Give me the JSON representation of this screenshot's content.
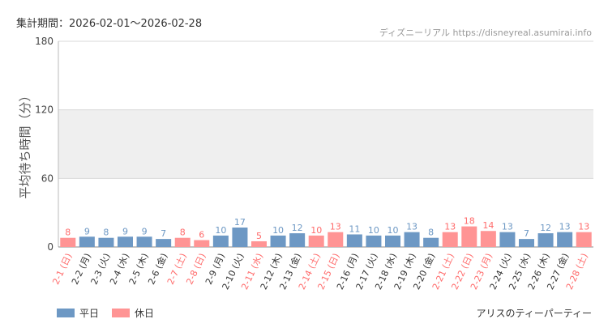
{
  "header": {
    "period": "集計期間：2026-02-01～2026-02-28",
    "credit": "ディズニーリアル https://disneyreal.asumirai.info"
  },
  "footer": {
    "attraction": "アリスのティーパーティー"
  },
  "colors": {
    "weekday": "#6d98c4",
    "holiday": "#ff9494",
    "holiday_text": "#ff6b6b",
    "band": "#efefef"
  },
  "chart_data": {
    "type": "bar",
    "ylabel": "平均待ち時間（分）",
    "ylim": [
      0,
      180
    ],
    "yticks": [
      0,
      60,
      120,
      180
    ],
    "shaded_band": [
      60,
      120
    ],
    "legend": [
      {
        "name": "平日",
        "key": "weekday"
      },
      {
        "name": "休日",
        "key": "holiday"
      }
    ],
    "legend_position": "bottom-left",
    "categories": [
      "2-1 (日)",
      "2-2 (月)",
      "2-3 (火)",
      "2-4 (水)",
      "2-5 (木)",
      "2-6 (金)",
      "2-7 (土)",
      "2-8 (日)",
      "2-9 (月)",
      "2-10 (火)",
      "2-11 (水)",
      "2-12 (木)",
      "2-13 (金)",
      "2-14 (土)",
      "2-15 (日)",
      "2-16 (月)",
      "2-17 (火)",
      "2-18 (水)",
      "2-19 (木)",
      "2-20 (金)",
      "2-21 (土)",
      "2-22 (日)",
      "2-23 (月)",
      "2-24 (火)",
      "2-25 (水)",
      "2-26 (木)",
      "2-27 (金)",
      "2-28 (土)"
    ],
    "values": [
      8,
      9,
      8,
      9,
      9,
      7,
      8,
      6,
      10,
      17,
      5,
      10,
      12,
      10,
      13,
      11,
      10,
      10,
      13,
      8,
      13,
      18,
      14,
      13,
      7,
      12,
      13,
      13
    ],
    "day_type": [
      "holiday",
      "weekday",
      "weekday",
      "weekday",
      "weekday",
      "weekday",
      "holiday",
      "holiday",
      "weekday",
      "weekday",
      "holiday",
      "weekday",
      "weekday",
      "holiday",
      "holiday",
      "weekday",
      "weekday",
      "weekday",
      "weekday",
      "weekday",
      "holiday",
      "holiday",
      "holiday",
      "weekday",
      "weekday",
      "weekday",
      "weekday",
      "holiday"
    ]
  }
}
